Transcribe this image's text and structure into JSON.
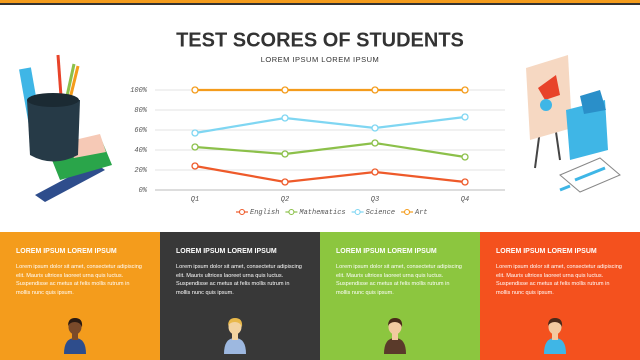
{
  "chart_data": {
    "type": "line",
    "title": "TEST SCORES OF STUDENTS",
    "subtitle": "LOREM IPSUM LOREM IPSUM",
    "categories": [
      "Q1",
      "Q2",
      "Q3",
      "Q4"
    ],
    "series": [
      {
        "name": "English",
        "color": "#ee5a2a",
        "values": [
          24,
          8,
          18,
          8
        ]
      },
      {
        "name": "Mathematics",
        "color": "#8cc04a",
        "values": [
          43,
          36,
          47,
          33
        ]
      },
      {
        "name": "Science",
        "color": "#7fd6f2",
        "values": [
          57,
          72,
          62,
          73
        ]
      },
      {
        "name": "Art",
        "color": "#f49c1c",
        "values": [
          100,
          100,
          100,
          100
        ]
      }
    ],
    "ylim": [
      0,
      100
    ],
    "yticks": [
      {
        "value": 0,
        "label": "0%"
      },
      {
        "value": 20,
        "label": "20%"
      },
      {
        "value": 40,
        "label": "40%"
      },
      {
        "value": 60,
        "label": "60%"
      },
      {
        "value": 80,
        "label": "80%"
      },
      {
        "value": 100,
        "label": "100%"
      }
    ],
    "grid": true,
    "legend": "bottom"
  },
  "panels": [
    {
      "title": "LOREM IPSUM LOREM IPSUM",
      "text": "Lorem ipsum dolor sit amet, consectetur adipiscing elit. Mauris ultrices laoreet urna quis luctus. Suspendisse ac metus at felis mollis rutrum in mollis nunc quis ipsum.",
      "color": "#f49c1c"
    },
    {
      "title": "LOREM IPSUM LOREM IPSUM",
      "text": "Lorem ipsum dolor sit amet, consectetur adipiscing elit. Mauris ultrices laoreet urna quis luctus. Suspendisse ac metus at felis mollis rutrum in mollis nunc quis ipsum.",
      "color": "#383838"
    },
    {
      "title": "LOREM IPSUM LOREM IPSUM",
      "text": "Lorem ipsum dolor sit amet, consectetur adipiscing elit. Mauris ultrices laoreet urna quis luctus. Suspendisse ac metus at felis mollis rutrum in mollis nunc quis ipsum.",
      "color": "#8cc63f"
    },
    {
      "title": "LOREM IPSUM LOREM IPSUM",
      "text": "Lorem ipsum dolor sit amet, consectetur adipiscing elit. Mauris ultrices laoreet urna quis luctus. Suspendisse ac metus at felis mollis rutrum in mollis nunc quis ipsum.",
      "color": "#f4511e"
    }
  ]
}
